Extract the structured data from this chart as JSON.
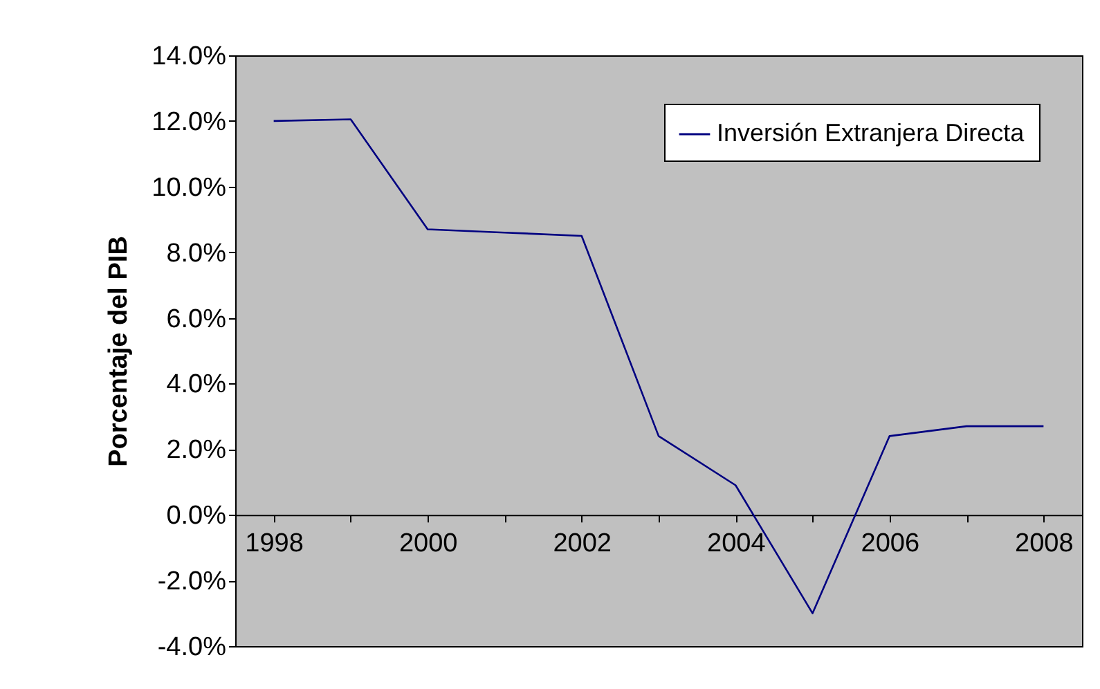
{
  "chart_data": {
    "type": "line",
    "ylabel": "Porcentaje del PIB",
    "x": [
      1998,
      1999,
      2000,
      2001,
      2002,
      2003,
      2004,
      2005,
      2006,
      2007,
      2008
    ],
    "series": [
      {
        "name": "Inversión Extranjera Directa",
        "color": "#000080",
        "values": [
          12.0,
          12.05,
          8.7,
          8.6,
          8.5,
          2.4,
          0.9,
          -3.0,
          2.4,
          2.7,
          2.7
        ]
      }
    ],
    "xlim": [
      1997.5,
      2008.5
    ],
    "xticks": [
      1998,
      {
        "value": 1999,
        "label": null
      },
      2000,
      {
        "value": 2001,
        "label": null
      },
      2002,
      {
        "value": 2003,
        "label": null
      },
      2004,
      {
        "value": 2005,
        "label": null
      },
      2006,
      {
        "value": 2007,
        "label": null
      },
      2008
    ],
    "ylim": [
      -4,
      14
    ],
    "yticks": [
      {
        "value": -4,
        "label": "-4.0%"
      },
      {
        "value": -2,
        "label": "-2.0%"
      },
      {
        "value": 0,
        "label": "0.0%"
      },
      {
        "value": 2,
        "label": "2.0%"
      },
      {
        "value": 4,
        "label": "4.0%"
      },
      {
        "value": 6,
        "label": "6.0%"
      },
      {
        "value": 8,
        "label": "8.0%"
      },
      {
        "value": 10,
        "label": "10.0%"
      },
      {
        "value": 12,
        "label": "12.0%"
      },
      {
        "value": 14,
        "label": "14.0%"
      }
    ],
    "grid": false,
    "legend": "top right",
    "marker": "none",
    "line_style": "solid"
  }
}
